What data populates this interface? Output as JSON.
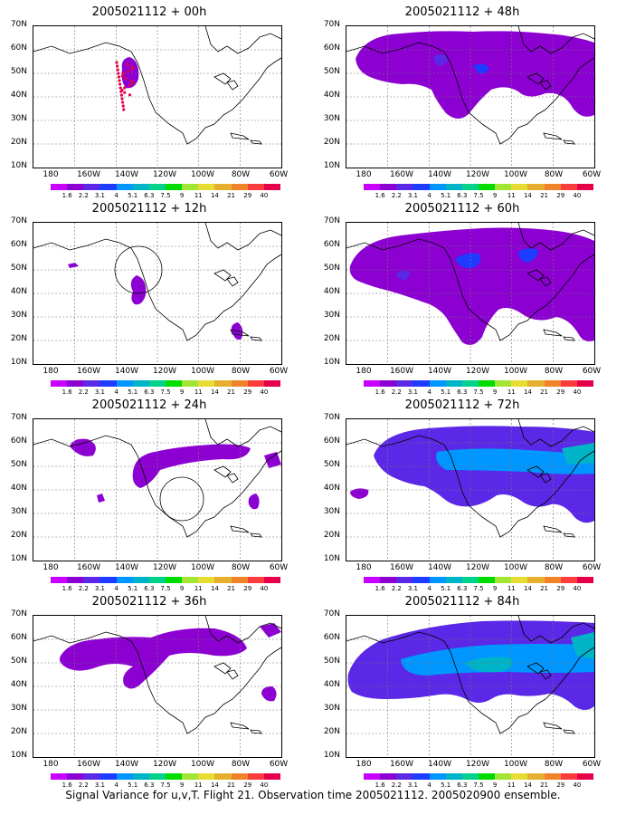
{
  "panels": [
    {
      "title": "2005021112 + 00h",
      "col": 0,
      "row": 0,
      "key": "00"
    },
    {
      "title": "2005021112 + 48h",
      "col": 1,
      "row": 0,
      "key": "48"
    },
    {
      "title": "2005021112 + 12h",
      "col": 0,
      "row": 1,
      "key": "12"
    },
    {
      "title": "2005021112 + 60h",
      "col": 1,
      "row": 1,
      "key": "60"
    },
    {
      "title": "2005021112 + 24h",
      "col": 0,
      "row": 2,
      "key": "24"
    },
    {
      "title": "2005021112 + 72h",
      "col": 1,
      "row": 2,
      "key": "72"
    },
    {
      "title": "2005021112 + 36h",
      "col": 0,
      "row": 3,
      "key": "36"
    },
    {
      "title": "2005021112 + 84h",
      "col": 1,
      "row": 3,
      "key": "84"
    }
  ],
  "y_labels": [
    "70N",
    "60N",
    "50N",
    "40N",
    "30N",
    "20N",
    "10N"
  ],
  "x_labels": [
    "180",
    "160W",
    "140W",
    "120W",
    "100W",
    "80W",
    "60W"
  ],
  "colorbar": {
    "labels": [
      "1.6",
      "2.2",
      "3.1",
      "4",
      "5.1",
      "6.3",
      "7.5",
      "9",
      "11",
      "14",
      "21",
      "29",
      "40"
    ],
    "colors": [
      "#c800ff",
      "#8c00d2",
      "#5a28e6",
      "#1e3cff",
      "#0096ff",
      "#00b4c8",
      "#00d28c",
      "#00dc00",
      "#a0e632",
      "#e6dc32",
      "#e6af2d",
      "#f08228",
      "#fa3c3c",
      "#e6004a"
    ]
  },
  "footer": "Signal Variance for u,v,T. Flight 21. Observation time 2005021112. 2005020900 ensemble."
}
